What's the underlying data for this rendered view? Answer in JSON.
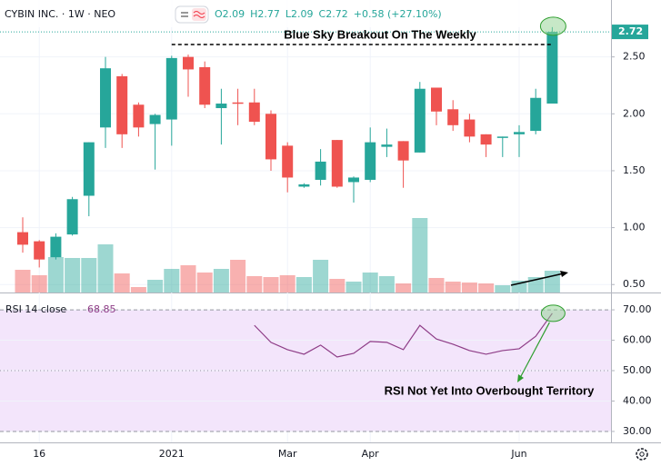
{
  "chart_data": [
    {
      "type": "candlestick",
      "title": "CYBIN INC. · 1W · NEO",
      "header_values": [
        "O2.09",
        "H2.77",
        "L2.09",
        "C2.72",
        "+0.58 (+27.10%)"
      ],
      "annotation": "Blue Sky Breakout On The Weekly",
      "categories": [
        null,
        "16",
        null,
        null,
        null,
        null,
        null,
        null,
        null,
        "2021",
        null,
        null,
        null,
        null,
        null,
        null,
        "Mar",
        null,
        null,
        null,
        null,
        "Apr",
        null,
        null,
        null,
        null,
        null,
        null,
        null,
        null,
        "Jun",
        null,
        null
      ],
      "open": [
        0.96,
        0.88,
        0.74,
        0.94,
        1.28,
        1.88,
        2.33,
        2.08,
        1.91,
        1.95,
        2.5,
        2.41,
        2.05,
        2.1,
        2.1,
        2.0,
        1.72,
        1.36,
        1.42,
        1.77,
        1.4,
        1.42,
        1.71,
        1.76,
        1.66,
        2.23,
        2.04,
        1.95,
        1.82,
        1.79,
        1.82,
        1.85,
        2.09
      ],
      "high": [
        1.09,
        0.89,
        0.95,
        1.27,
        1.75,
        2.5,
        2.35,
        2.1,
        2.0,
        2.51,
        2.52,
        2.46,
        2.22,
        2.22,
        2.22,
        2.03,
        1.75,
        1.39,
        1.69,
        1.77,
        1.45,
        1.88,
        1.87,
        1.76,
        2.28,
        2.23,
        2.12,
        2.0,
        1.82,
        1.8,
        1.9,
        2.22,
        2.77
      ],
      "low": [
        0.78,
        0.65,
        0.72,
        0.93,
        1.1,
        1.7,
        1.7,
        1.8,
        1.51,
        1.72,
        2.15,
        2.05,
        1.73,
        1.9,
        1.9,
        1.5,
        1.31,
        1.35,
        1.37,
        1.35,
        1.22,
        1.4,
        1.62,
        1.35,
        1.66,
        1.9,
        1.85,
        1.75,
        1.62,
        1.62,
        1.62,
        1.82,
        2.09
      ],
      "close": [
        0.85,
        0.72,
        0.92,
        1.25,
        1.75,
        2.4,
        1.82,
        1.88,
        1.99,
        2.49,
        2.39,
        2.08,
        2.09,
        2.09,
        1.93,
        1.6,
        1.44,
        1.38,
        1.58,
        1.36,
        1.44,
        1.75,
        1.73,
        1.59,
        2.22,
        2.02,
        1.9,
        1.8,
        1.73,
        1.8,
        1.84,
        2.14,
        2.72
      ],
      "volume": [
        25,
        19,
        39,
        38,
        38,
        53,
        21,
        6,
        14,
        26,
        30,
        22,
        26,
        36,
        18,
        17,
        19,
        17,
        36,
        15,
        12,
        22,
        18,
        10,
        82,
        16,
        12,
        11,
        10,
        8,
        13,
        17,
        24
      ],
      "up_color": "#26a69a",
      "down_color": "#ef5350",
      "ylim": [
        0.43,
        3.0
      ],
      "yticks": [
        {
          "value": 0.5,
          "label": "0.50"
        },
        {
          "value": 1.0,
          "label": "1.00"
        },
        {
          "value": 1.5,
          "label": "1.50"
        },
        {
          "value": 2.0,
          "label": "2.00"
        },
        {
          "value": 2.5,
          "label": "2.50"
        }
      ],
      "grid": true
    },
    {
      "type": "line",
      "title": "RSI 14 close",
      "annotation": "RSI Not Yet Into Overbought Territory",
      "color": "#8e3d87",
      "values": [
        null,
        null,
        null,
        null,
        null,
        null,
        null,
        null,
        null,
        null,
        null,
        null,
        null,
        null,
        64.9,
        59.3,
        56.9,
        55.4,
        58.4,
        54.5,
        55.7,
        59.6,
        59.3,
        56.9,
        64.9,
        60.4,
        58.7,
        56.6,
        55.4,
        56.6,
        57.2,
        61.3,
        68.85
      ],
      "ylim": [
        26.4,
        75.4
      ],
      "yticks": [
        {
          "value": 30,
          "label": "30.00"
        },
        {
          "value": 40,
          "label": "40.00"
        },
        {
          "value": 50,
          "label": "50.00"
        },
        {
          "value": 60,
          "label": "60.00"
        },
        {
          "value": 70,
          "label": "70.00"
        }
      ],
      "grid": true
    }
  ]
}
